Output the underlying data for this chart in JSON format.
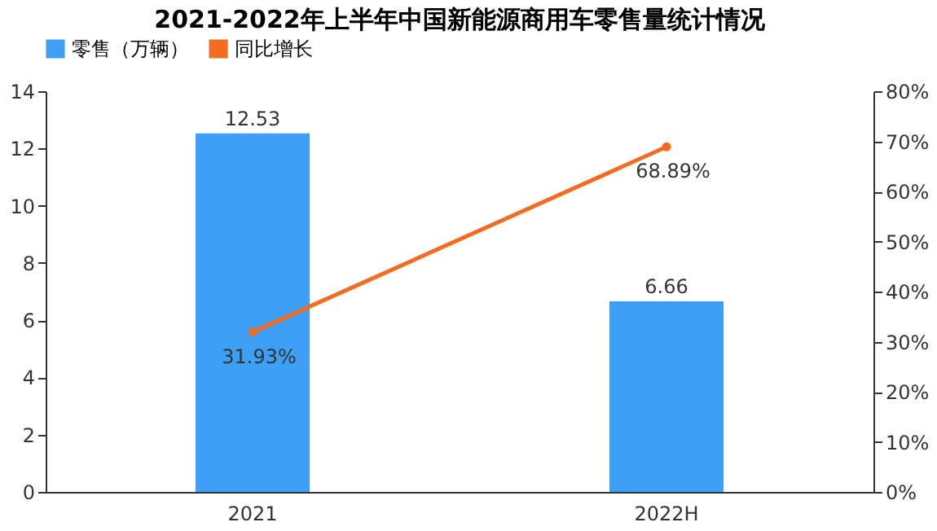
{
  "chart_data": {
    "type": "bar",
    "title": "2021-2022年上半年中国新能源商用车零售量统计情况",
    "categories": [
      "2021",
      "2022H"
    ],
    "series": [
      {
        "name": "零售（万辆）",
        "color": "#3d9ff5",
        "values": [
          12.53,
          6.66
        ],
        "value_labels": [
          "12.53",
          "6.66"
        ]
      },
      {
        "name": "同比增长",
        "type": "line",
        "axis": "y2",
        "color": "#f26d21",
        "values": [
          31.93,
          68.89
        ],
        "value_labels": [
          "31.93%",
          "68.89%"
        ]
      }
    ],
    "ylim": [
      0,
      14
    ],
    "yticks": [
      0,
      2,
      4,
      6,
      8,
      10,
      12,
      14
    ],
    "y2lim": [
      0,
      80
    ],
    "y2ticks": [
      {
        "value": 0,
        "label": "0%"
      },
      {
        "value": 10,
        "label": "10%"
      },
      {
        "value": 20,
        "label": "20%"
      },
      {
        "value": 30,
        "label": "30%"
      },
      {
        "value": 40,
        "label": "40%"
      },
      {
        "value": 50,
        "label": "50%"
      },
      {
        "value": 60,
        "label": "60%"
      },
      {
        "value": 70,
        "label": "70%"
      },
      {
        "value": 80,
        "label": "80%"
      }
    ],
    "legend": "top",
    "grid": false,
    "marker": "circle"
  }
}
